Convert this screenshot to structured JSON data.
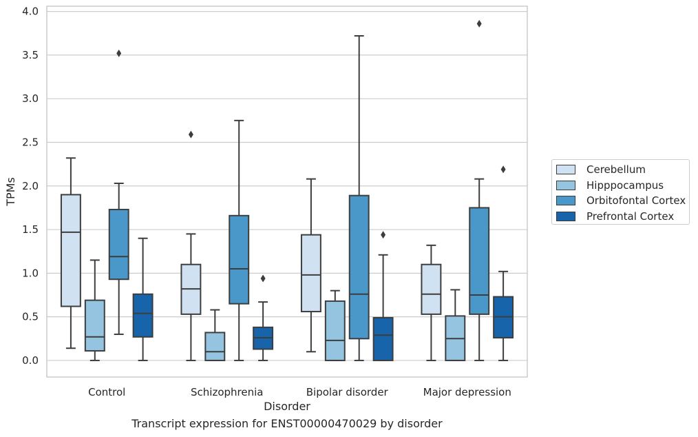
{
  "chart_data": {
    "type": "box",
    "title": "",
    "xlabel": "Disorder",
    "ylabel": "TPMs",
    "caption": "Transcript expression for ENST00000470029 by disorder",
    "categories": [
      "Control",
      "Schizophrenia",
      "Bipolar disorder",
      "Major depression"
    ],
    "ylim": [
      -0.19,
      4.06
    ],
    "yticks": [
      0.0,
      0.5,
      1.0,
      1.5,
      2.0,
      2.5,
      3.0,
      3.5,
      4.0
    ],
    "ytick_labels": [
      "0.0",
      "0.5",
      "1.0",
      "1.5",
      "2.0",
      "2.5",
      "3.0",
      "3.5",
      "4.0"
    ],
    "grid": true,
    "legend_position": "right",
    "series": [
      {
        "name": "Cerebellum",
        "color": "#d0e1f2",
        "boxes": [
          {
            "whislo": 0.14,
            "q1": 0.62,
            "med": 1.47,
            "q3": 1.9,
            "whishi": 2.32,
            "fliers": []
          },
          {
            "whislo": 0.0,
            "q1": 0.53,
            "med": 0.82,
            "q3": 1.1,
            "whishi": 1.45,
            "fliers": [
              2.59
            ]
          },
          {
            "whislo": 0.1,
            "q1": 0.56,
            "med": 0.98,
            "q3": 1.44,
            "whishi": 2.08,
            "fliers": []
          },
          {
            "whislo": 0.0,
            "q1": 0.53,
            "med": 0.76,
            "q3": 1.1,
            "whishi": 1.32,
            "fliers": []
          }
        ]
      },
      {
        "name": "Hipppocampus",
        "color": "#94c4df",
        "boxes": [
          {
            "whislo": 0.0,
            "q1": 0.11,
            "med": 0.27,
            "q3": 0.69,
            "whishi": 1.15,
            "fliers": []
          },
          {
            "whislo": 0.0,
            "q1": 0.0,
            "med": 0.1,
            "q3": 0.32,
            "whishi": 0.58,
            "fliers": []
          },
          {
            "whislo": 0.0,
            "q1": 0.0,
            "med": 0.23,
            "q3": 0.68,
            "whishi": 0.8,
            "fliers": []
          },
          {
            "whislo": 0.0,
            "q1": 0.0,
            "med": 0.25,
            "q3": 0.51,
            "whishi": 0.81,
            "fliers": []
          }
        ]
      },
      {
        "name": "Orbitofontal Cortex",
        "color": "#4a98c9",
        "boxes": [
          {
            "whislo": 0.3,
            "q1": 0.93,
            "med": 1.19,
            "q3": 1.73,
            "whishi": 2.03,
            "fliers": [
              3.52
            ]
          },
          {
            "whislo": 0.0,
            "q1": 0.65,
            "med": 1.05,
            "q3": 1.66,
            "whishi": 2.75,
            "fliers": []
          },
          {
            "whislo": 0.0,
            "q1": 0.25,
            "med": 0.76,
            "q3": 1.89,
            "whishi": 3.72,
            "fliers": []
          },
          {
            "whislo": 0.0,
            "q1": 0.53,
            "med": 0.75,
            "q3": 1.75,
            "whishi": 2.08,
            "fliers": [
              3.86
            ]
          }
        ]
      },
      {
        "name": "Prefrontal Cortex",
        "color": "#1764ab",
        "boxes": [
          {
            "whislo": 0.0,
            "q1": 0.27,
            "med": 0.54,
            "q3": 0.76,
            "whishi": 1.4,
            "fliers": []
          },
          {
            "whislo": 0.0,
            "q1": 0.13,
            "med": 0.26,
            "q3": 0.38,
            "whishi": 0.67,
            "fliers": [
              0.94
            ]
          },
          {
            "whislo": 0.0,
            "q1": 0.0,
            "med": 0.29,
            "q3": 0.49,
            "whishi": 1.21,
            "fliers": [
              1.44
            ]
          },
          {
            "whislo": 0.0,
            "q1": 0.26,
            "med": 0.5,
            "q3": 0.73,
            "whishi": 1.02,
            "fliers": [
              2.19
            ]
          }
        ]
      }
    ]
  }
}
